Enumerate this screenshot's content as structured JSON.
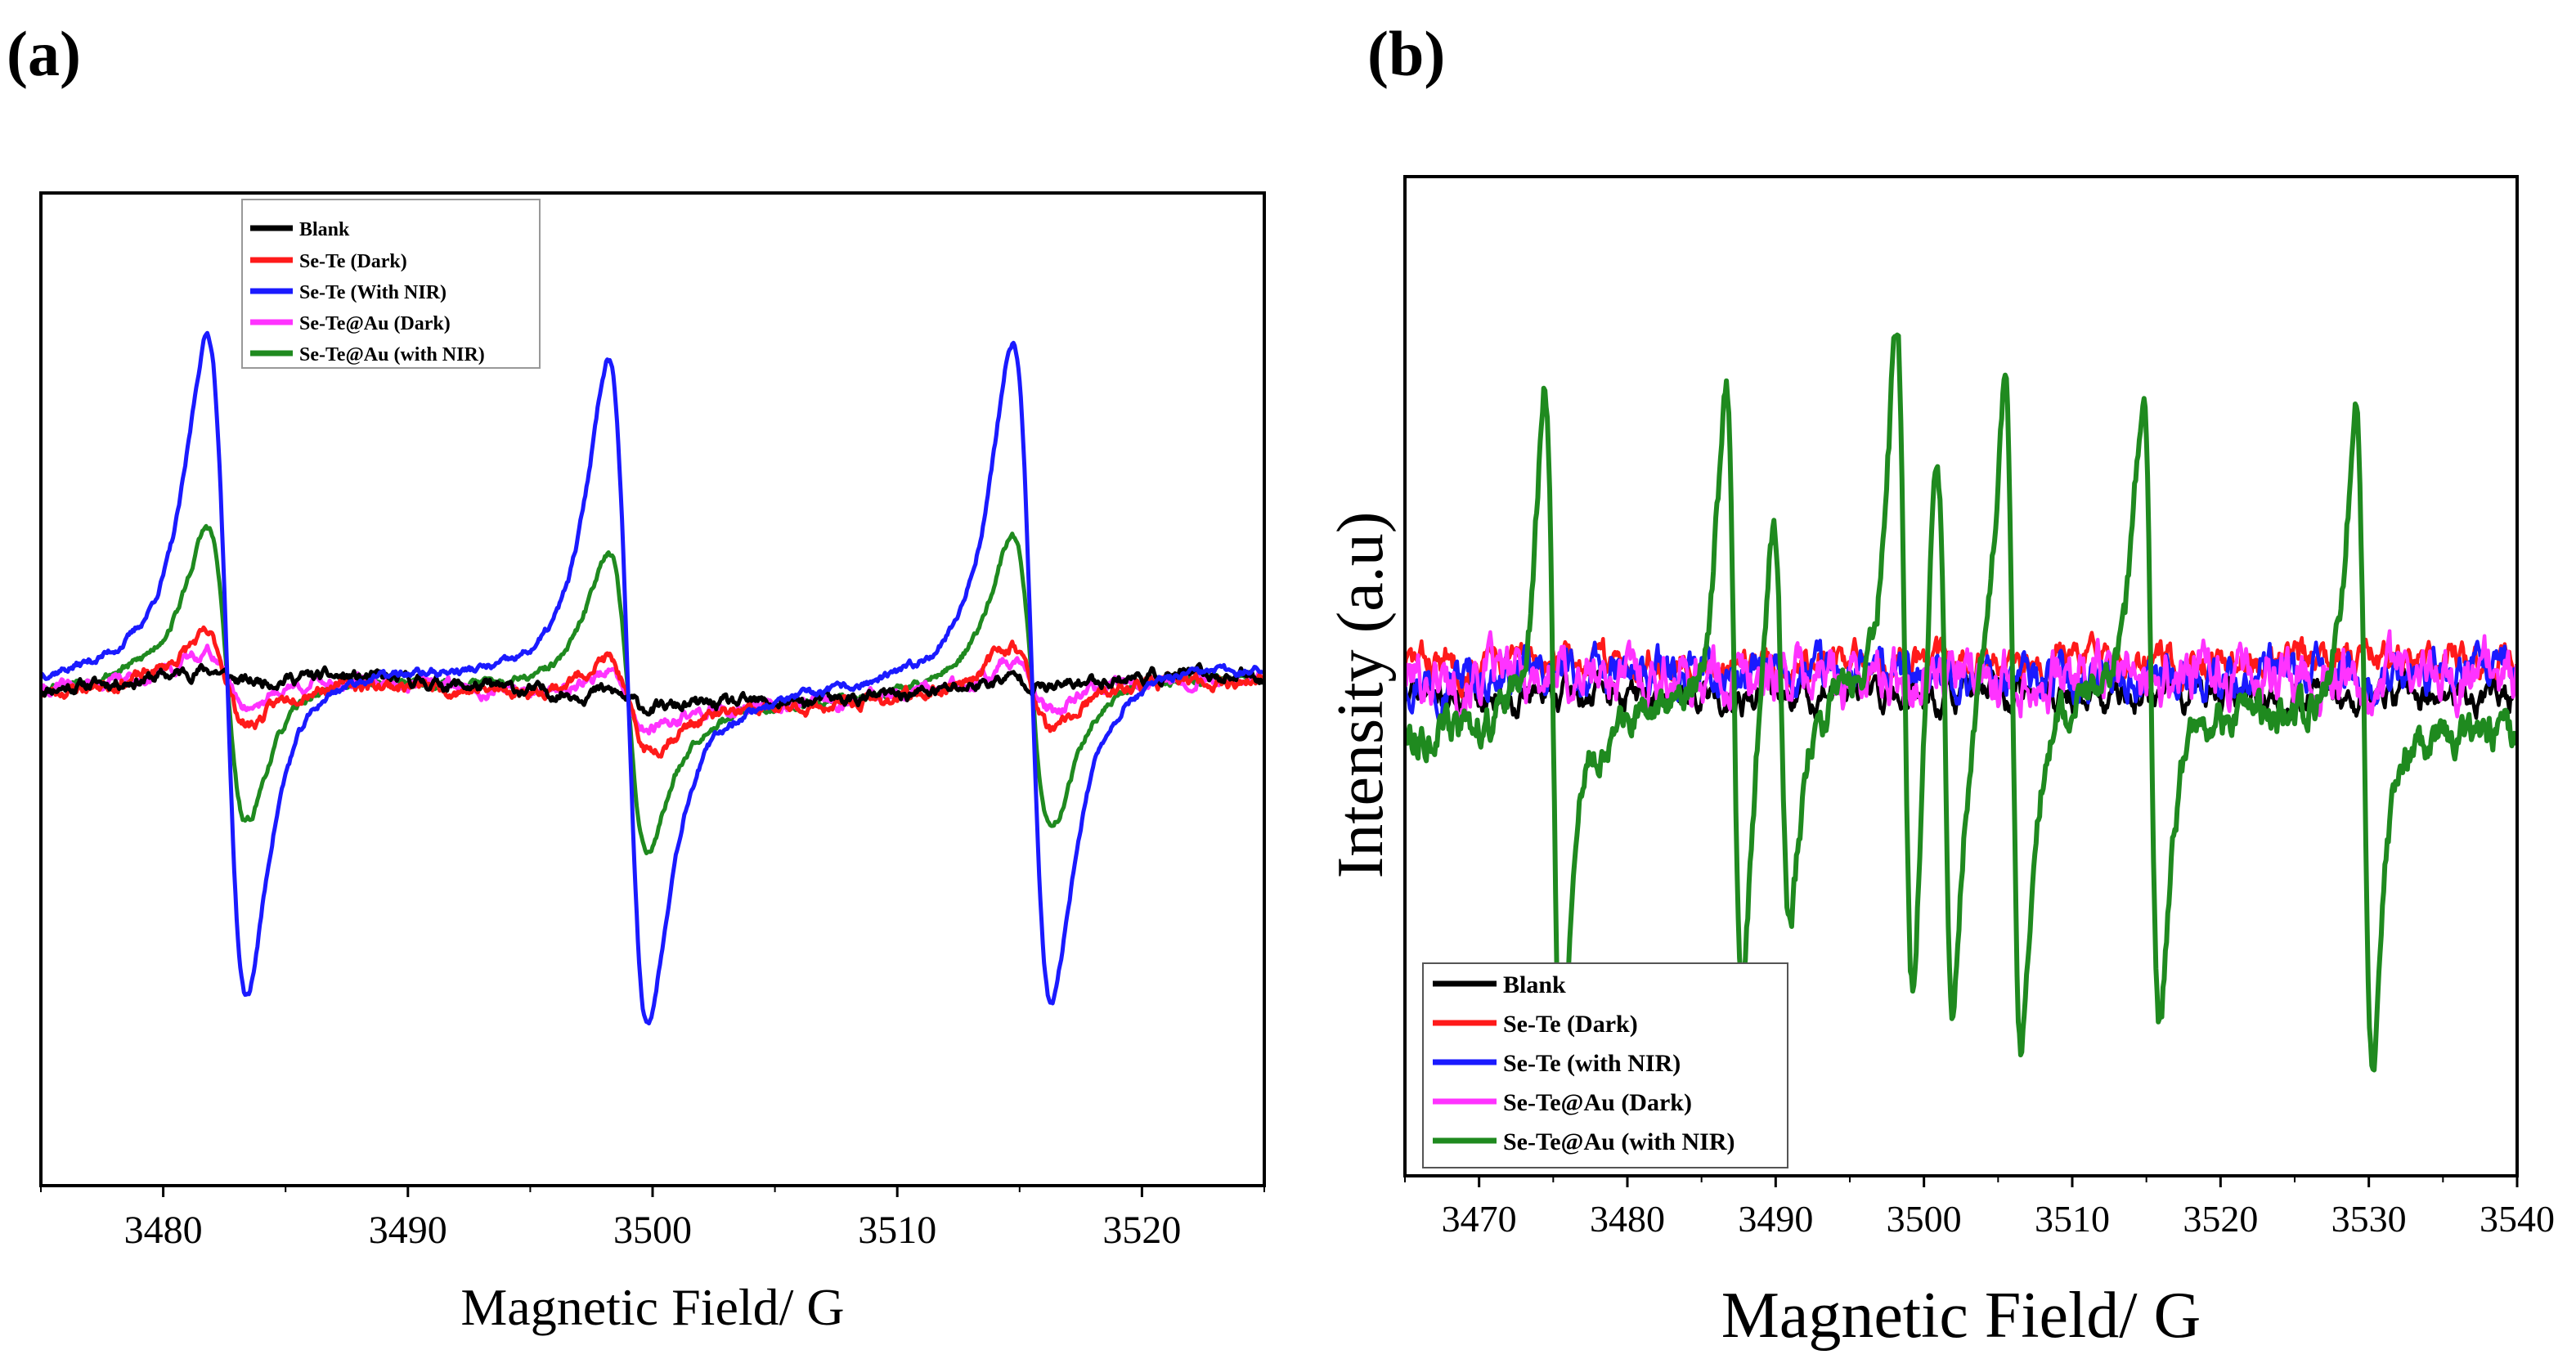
{
  "figure": {
    "panel_labels": [
      "(a)",
      "(b)"
    ]
  },
  "chart_data": [
    {
      "type": "line",
      "panel": "(a)",
      "title": "",
      "xlabel": "Magnetic Field/ G",
      "ylabel": "",
      "xlim": [
        3475,
        3525
      ],
      "ylim": [
        -1.05,
        1.05
      ],
      "xticks": [
        3480,
        3490,
        3500,
        3510,
        3520
      ],
      "yticks": [],
      "legend_position": "top-left",
      "grid": false,
      "line_centers": [
        3482.6,
        3499.0,
        3515.5
      ],
      "series": [
        {
          "name": "Blank",
          "color": "#000000",
          "amplitude": 0.02,
          "width": 0.9,
          "noise": 0.015,
          "offset": 0.0,
          "seed": 11
        },
        {
          "name": "Se-Te (Dark)",
          "color": "#ff1a1a",
          "amplitude": 0.13,
          "width": 0.9,
          "noise": 0.015,
          "offset": -0.01,
          "seed": 23
        },
        {
          "name": "Se-Te (With NIR)",
          "color": "#1a1aff",
          "amplitude": 0.96,
          "width": 0.8,
          "noise": 0.01,
          "offset": 0.02,
          "seed": 37
        },
        {
          "name": "Se-Te@Au (Dark)",
          "color": "#ff33ff",
          "amplitude": 0.08,
          "width": 0.9,
          "noise": 0.015,
          "offset": -0.005,
          "seed": 41
        },
        {
          "name": "Se-Te@Au (with NIR)",
          "color": "#1f8a1f",
          "amplitude": 0.43,
          "width": 0.8,
          "noise": 0.01,
          "offset": 0.0,
          "seed": 53
        }
      ]
    },
    {
      "type": "line",
      "panel": "(b)",
      "title": "",
      "xlabel": "Magnetic Field/ G",
      "ylabel": "Intensity (a.u)",
      "xlim": [
        3465,
        3540
      ],
      "ylim": [
        -1.05,
        1.05
      ],
      "xticks": [
        3470,
        3480,
        3490,
        3500,
        3510,
        3520,
        3530,
        3540
      ],
      "yticks": [],
      "legend_position": "bottom-left",
      "grid": false,
      "series": [
        {
          "name": "Blank",
          "color": "#000000",
          "offset": -0.04,
          "noise": 0.03,
          "seed": 71
        },
        {
          "name": "Se-Te (Dark)",
          "color": "#ff1a1a",
          "offset": 0.03,
          "noise": 0.03,
          "seed": 83
        },
        {
          "name": "Se-Te (with NIR)",
          "color": "#1a1aff",
          "offset": 0.0,
          "noise": 0.04,
          "seed": 97
        },
        {
          "name": "Se-Te@Au (Dark)",
          "color": "#ff33ff",
          "offset": 0.0,
          "noise": 0.05,
          "seed": 101
        },
        {
          "name": "Se-Te@Au (with NIR)",
          "color": "#1f8a1f",
          "offset": -0.08,
          "noise": 0.035,
          "seed": 113,
          "peaks": [
            {
              "center": 3475.0,
              "amplitude": 0.97
            },
            {
              "center": 3487.2,
              "amplitude": 0.88
            },
            {
              "center": 3490.4,
              "amplitude": 0.62
            },
            {
              "center": 3498.7,
              "amplitude": 1.0
            },
            {
              "center": 3501.4,
              "amplitude": 0.85
            },
            {
              "center": 3506.0,
              "amplitude": 0.97
            },
            {
              "center": 3515.4,
              "amplitude": 0.36
            },
            {
              "center": 3515.3,
              "amplitude": 0.55
            },
            {
              "center": 3529.7,
              "amplitude": 0.95
            }
          ]
        }
      ]
    }
  ]
}
